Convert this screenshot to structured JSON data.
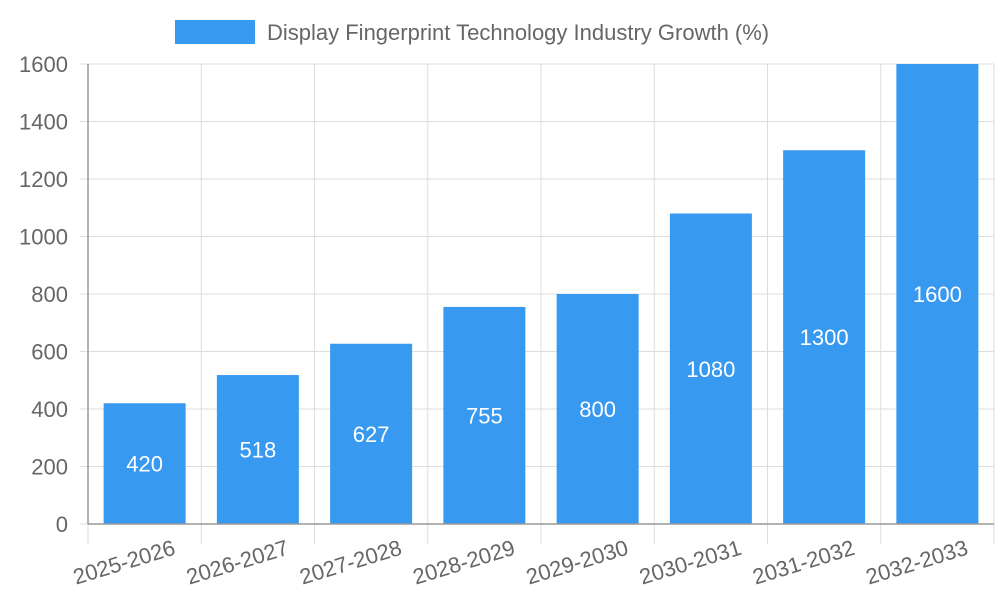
{
  "chart_data": {
    "type": "bar",
    "legend": {
      "label": "Display Fingerprint Technology Industry Growth (%)",
      "position": "top-center"
    },
    "categories": [
      "2025-2026",
      "2026-2027",
      "2027-2028",
      "2028-2029",
      "2029-2030",
      "2030-2031",
      "2031-2032",
      "2032-2033"
    ],
    "series": [
      {
        "name": "Display Fingerprint Technology Industry Growth (%)",
        "values": [
          420,
          518,
          627,
          755,
          800,
          1080,
          1300,
          1600
        ]
      }
    ],
    "ylim": [
      0,
      1600
    ],
    "yticks": [
      "0",
      "200",
      "400",
      "600",
      "800",
      "1000",
      "1200",
      "1400",
      "1600"
    ],
    "grid": true,
    "data_labels": true,
    "colors": {
      "bar": "#3899f0",
      "grid": "#dddddd",
      "axis": "#999999",
      "tick_text": "#666666",
      "data_label": "#ffffff"
    }
  }
}
